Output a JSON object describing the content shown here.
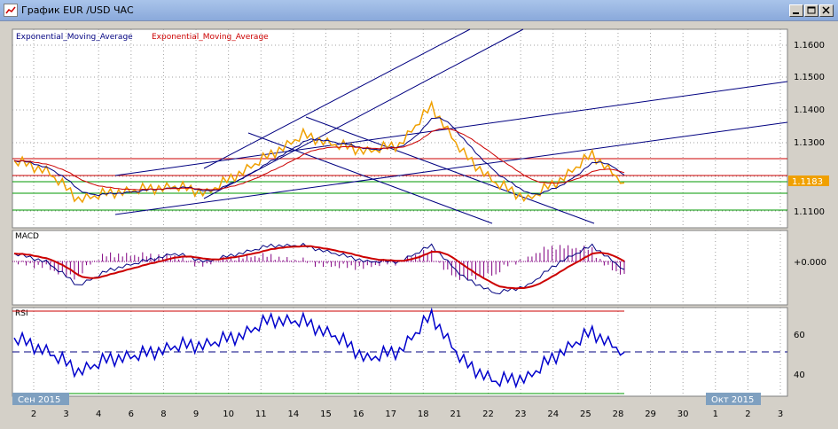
{
  "window": {
    "title": "График EUR /USD  ЧАС",
    "buttons": [
      "minimize",
      "maximize",
      "close"
    ]
  },
  "legend": {
    "indicator_1": "Exponential_Moving_Average",
    "indicator_2": "Exponential_Moving_Average"
  },
  "price_axis": {
    "ticks": [
      "1.1600",
      "1.1500",
      "1.1400",
      "1.1300",
      "1.1100"
    ],
    "current_price": "1.1183"
  },
  "macd_panel": {
    "label": "MACD",
    "zero_label": "+0.000"
  },
  "rsi_panel": {
    "label": "RSI",
    "ticks": [
      "60",
      "40"
    ]
  },
  "time_axis": {
    "month_sep": "Сен 2015",
    "month_oct": "Окт 2015",
    "days": [
      "2",
      "3",
      "4",
      "6",
      "8",
      "9",
      "10",
      "11",
      "14",
      "15",
      "16",
      "17",
      "18",
      "21",
      "22",
      "23",
      "24",
      "25",
      "28",
      "29",
      "30",
      "1",
      "2",
      "3"
    ]
  },
  "colors": {
    "price": "#f0a000",
    "ema_fast": "#000080",
    "ema_slow": "#cc0000",
    "trendline": "#000080",
    "resistance": "#cc0000",
    "support": "#009900",
    "macd_line": "#000080",
    "macd_signal": "#cc0000",
    "macd_hist": "#800080",
    "rsi": "#0000cc",
    "badge": "#f0a000",
    "month_badge": "#7fa0c0"
  },
  "chart_data": {
    "type": "line",
    "price": {
      "x": [
        "2",
        "3",
        "4",
        "6",
        "7",
        "8",
        "9",
        "10",
        "11",
        "14",
        "15",
        "16",
        "17",
        "18",
        "21",
        "22",
        "23",
        "24",
        "25",
        "28"
      ],
      "y": [
        1.125,
        1.122,
        1.113,
        1.115,
        1.116,
        1.117,
        1.115,
        1.121,
        1.127,
        1.133,
        1.13,
        1.128,
        1.13,
        1.142,
        1.127,
        1.118,
        1.113,
        1.119,
        1.127,
        1.118
      ],
      "ylim": [
        1.104,
        1.166
      ]
    },
    "rsi": {
      "y": [
        57,
        51,
        41,
        47,
        49,
        53,
        54,
        58,
        66,
        65,
        58,
        47,
        51,
        68,
        45,
        36,
        38,
        50,
        60,
        50
      ],
      "ylim": [
        30,
        70
      ]
    },
    "macd": {
      "y": [
        0.001,
        0.0,
        -0.003,
        -0.001,
        0.0,
        0.001,
        0.0,
        0.001,
        0.002,
        0.002,
        0.001,
        0.0,
        0.0,
        0.002,
        -0.002,
        -0.004,
        -0.003,
        0.0,
        0.002,
        -0.001
      ]
    }
  }
}
